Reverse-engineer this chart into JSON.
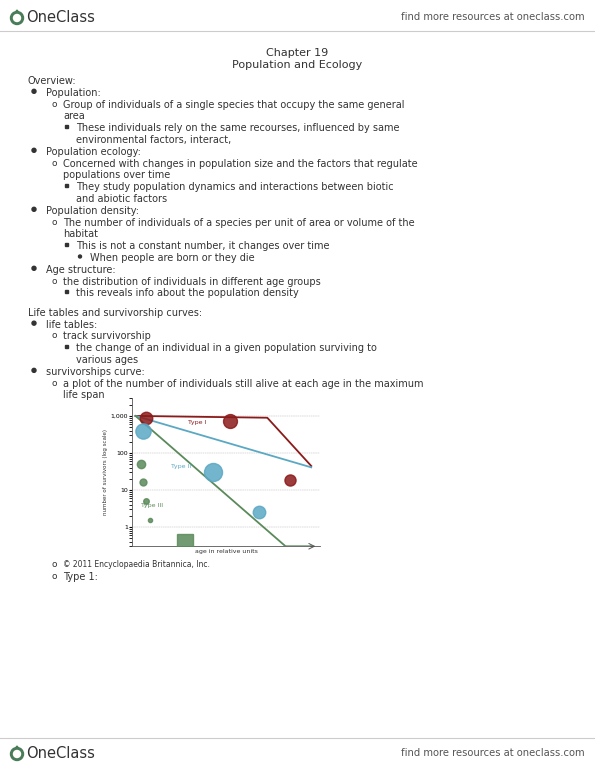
{
  "bg_color": "#ffffff",
  "chapter_title": "Chapter 19",
  "chapter_subtitle": "Population and Ecology",
  "oneclass_green": "#4a7c59",
  "text_color": "#333333",
  "graph_type1_color": "#8b1a1a",
  "graph_type2_color": "#5ba8c4",
  "graph_type3_color": "#5a8a5a",
  "header_text": "find more resources at oneclass.com",
  "footer_text": "find more resources at oneclass.com",
  "content_lines": [
    {
      "type": "section",
      "text": "Overview:"
    },
    {
      "type": "bullet1",
      "text": "Population:"
    },
    {
      "type": "bullet2",
      "text": "Group of individuals of a single species that occupy the same general"
    },
    {
      "type": "bullet2c",
      "text": "area"
    },
    {
      "type": "bullet3",
      "text": "These individuals rely on the same recourses, influenced by same"
    },
    {
      "type": "bullet3c",
      "text": "environmental factors, interact,"
    },
    {
      "type": "bullet1",
      "text": "Population ecology:"
    },
    {
      "type": "bullet2",
      "text": "Concerned with changes in population size and the factors that regulate"
    },
    {
      "type": "bullet2c",
      "text": "populations over time"
    },
    {
      "type": "bullet3",
      "text": "They study population dynamics and interactions between biotic"
    },
    {
      "type": "bullet3c",
      "text": "and abiotic factors"
    },
    {
      "type": "bullet1",
      "text": "Population density:"
    },
    {
      "type": "bullet2",
      "text": "The number of individuals of a species per unit of area or volume of the"
    },
    {
      "type": "bullet2c",
      "text": "habitat"
    },
    {
      "type": "bullet3",
      "text": "This is not a constant number, it changes over time"
    },
    {
      "type": "bullet4",
      "text": "When people are born or they die"
    },
    {
      "type": "bullet1",
      "text": "Age structure:"
    },
    {
      "type": "bullet2",
      "text": "the distribution of individuals in different age groups"
    },
    {
      "type": "bullet3",
      "text": "this reveals info about the population density"
    },
    {
      "type": "blank"
    },
    {
      "type": "section",
      "text": "Life tables and survivorship curves:"
    },
    {
      "type": "bullet1",
      "text": "life tables:"
    },
    {
      "type": "bullet2",
      "text": "track survivorship"
    },
    {
      "type": "bullet3",
      "text": "the change of an individual in a given population surviving to"
    },
    {
      "type": "bullet3c",
      "text": "various ages"
    },
    {
      "type": "bullet1",
      "text": "survivorships curve:"
    },
    {
      "type": "bullet2",
      "text": "a plot of the number of individuals still alive at each age in the maximum"
    },
    {
      "type": "bullet2c",
      "text": "life span"
    },
    {
      "type": "graph"
    },
    {
      "type": "bullet2s",
      "text": "© 2011 Encyclopaedia Britannica, Inc."
    },
    {
      "type": "bullet2",
      "text": "Type 1:"
    }
  ]
}
